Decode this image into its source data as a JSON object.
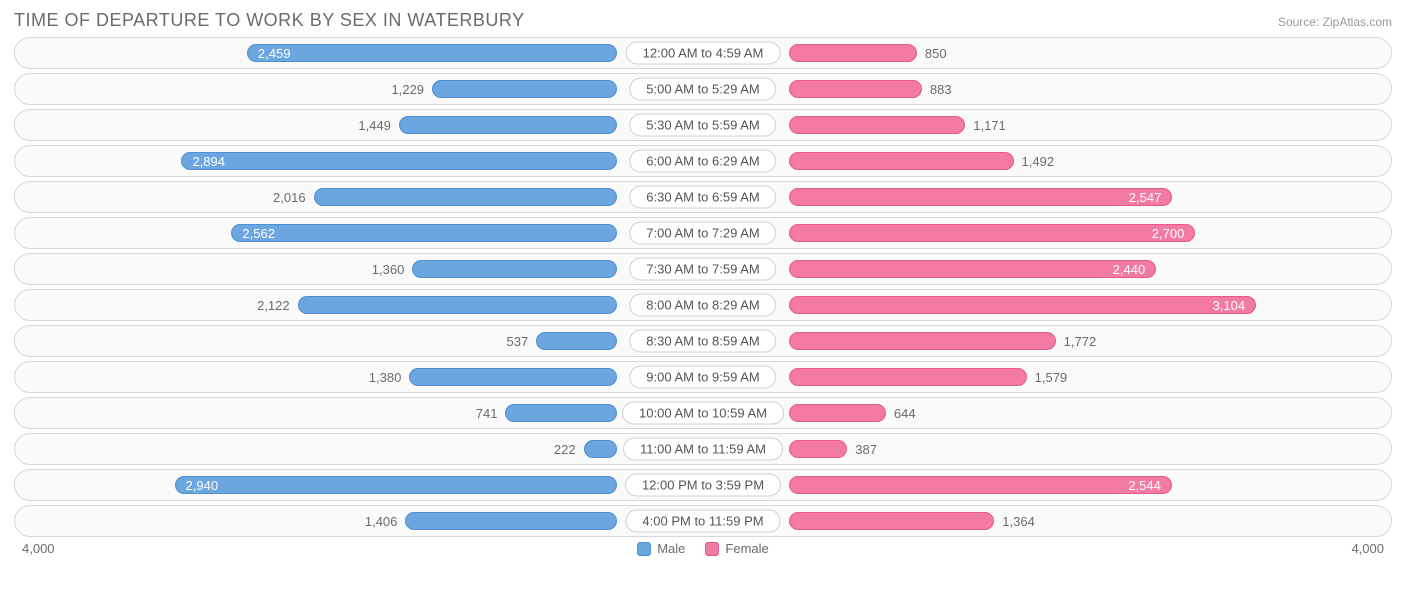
{
  "title": "TIME OF DEPARTURE TO WORK BY SEX IN WATERBURY",
  "source": "Source: ZipAtlas.com",
  "chart": {
    "type": "diverging-bar",
    "max_value": 4000,
    "axis_left_label": "4,000",
    "axis_right_label": "4,000",
    "male_color": "#6ca6e0",
    "male_border": "#4d8fcf",
    "female_color": "#f27aa5",
    "female_border": "#e55a8a",
    "row_bg": "#fafafa",
    "row_border": "#d8d8d8",
    "text_color": "#6b6b6b",
    "label_fontsize": 13,
    "title_fontsize": 18,
    "title_color": "#6b6b6b",
    "inside_threshold": 2300,
    "rows": [
      {
        "category": "12:00 AM to 4:59 AM",
        "male": 2459,
        "male_label": "2,459",
        "female": 850,
        "female_label": "850"
      },
      {
        "category": "5:00 AM to 5:29 AM",
        "male": 1229,
        "male_label": "1,229",
        "female": 883,
        "female_label": "883"
      },
      {
        "category": "5:30 AM to 5:59 AM",
        "male": 1449,
        "male_label": "1,449",
        "female": 1171,
        "female_label": "1,171"
      },
      {
        "category": "6:00 AM to 6:29 AM",
        "male": 2894,
        "male_label": "2,894",
        "female": 1492,
        "female_label": "1,492"
      },
      {
        "category": "6:30 AM to 6:59 AM",
        "male": 2016,
        "male_label": "2,016",
        "female": 2547,
        "female_label": "2,547"
      },
      {
        "category": "7:00 AM to 7:29 AM",
        "male": 2562,
        "male_label": "2,562",
        "female": 2700,
        "female_label": "2,700"
      },
      {
        "category": "7:30 AM to 7:59 AM",
        "male": 1360,
        "male_label": "1,360",
        "female": 2440,
        "female_label": "2,440"
      },
      {
        "category": "8:00 AM to 8:29 AM",
        "male": 2122,
        "male_label": "2,122",
        "female": 3104,
        "female_label": "3,104"
      },
      {
        "category": "8:30 AM to 8:59 AM",
        "male": 537,
        "male_label": "537",
        "female": 1772,
        "female_label": "1,772"
      },
      {
        "category": "9:00 AM to 9:59 AM",
        "male": 1380,
        "male_label": "1,380",
        "female": 1579,
        "female_label": "1,579"
      },
      {
        "category": "10:00 AM to 10:59 AM",
        "male": 741,
        "male_label": "741",
        "female": 644,
        "female_label": "644"
      },
      {
        "category": "11:00 AM to 11:59 AM",
        "male": 222,
        "male_label": "222",
        "female": 387,
        "female_label": "387"
      },
      {
        "category": "12:00 PM to 3:59 PM",
        "male": 2940,
        "male_label": "2,940",
        "female": 2544,
        "female_label": "2,544"
      },
      {
        "category": "4:00 PM to 11:59 PM",
        "male": 1406,
        "male_label": "1,406",
        "female": 1364,
        "female_label": "1,364"
      }
    ],
    "legend": {
      "male_label": "Male",
      "female_label": "Female"
    }
  }
}
